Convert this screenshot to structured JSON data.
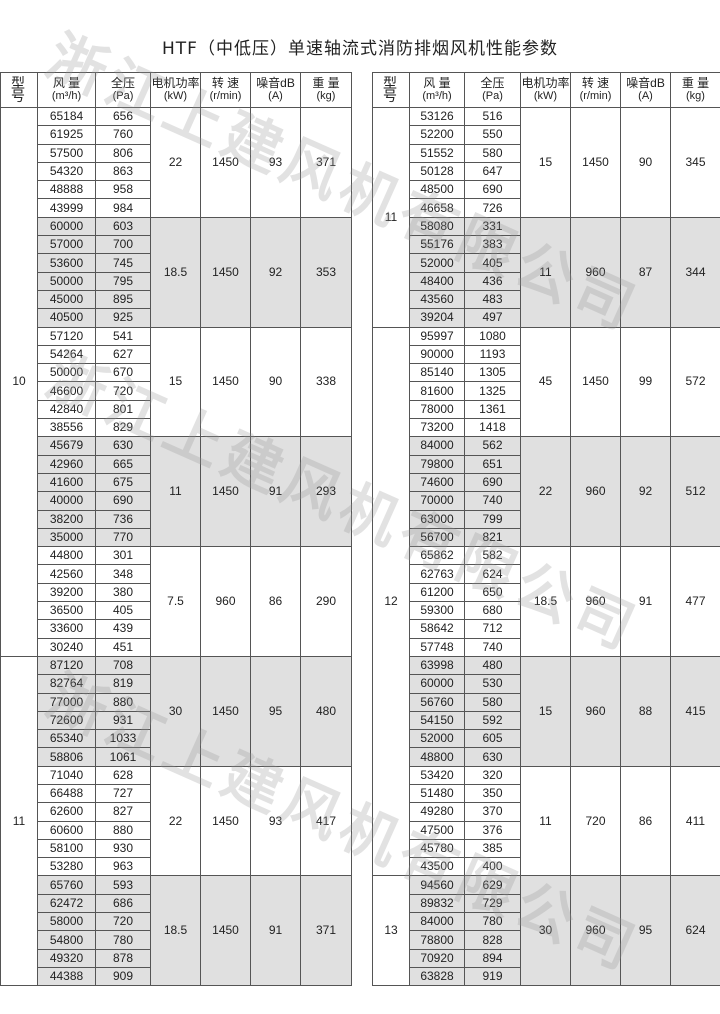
{
  "title": "HTF（中低压）单速轴流式消防排烟风机性能参数",
  "watermark": "浙江上建风机有限公司",
  "headers": [
    {
      "label": "型 号",
      "unit": ""
    },
    {
      "label": "风 量",
      "unit": "(m³/h)"
    },
    {
      "label": "全压",
      "unit": "(Pa)"
    },
    {
      "label": "电机功率",
      "unit": "(kW)"
    },
    {
      "label": "转 速",
      "unit": "(r/min)"
    },
    {
      "label": "噪音dB",
      "unit": "(A)"
    },
    {
      "label": "重 量",
      "unit": "(kg)"
    }
  ],
  "colors": {
    "shade": "#e0e0e0",
    "border": "#555555"
  },
  "left_table": [
    {
      "model": "10",
      "groups": [
        {
          "power": "22",
          "speed": "1450",
          "noise": "93",
          "weight": "371",
          "rows": [
            [
              "65184",
              "656"
            ],
            [
              "61925",
              "760"
            ],
            [
              "57500",
              "806"
            ],
            [
              "54320",
              "863"
            ],
            [
              "48888",
              "958"
            ],
            [
              "43999",
              "984"
            ]
          ]
        },
        {
          "power": "18.5",
          "speed": "1450",
          "noise": "92",
          "weight": "353",
          "rows": [
            [
              "60000",
              "603"
            ],
            [
              "57000",
              "700"
            ],
            [
              "53600",
              "745"
            ],
            [
              "50000",
              "795"
            ],
            [
              "45000",
              "895"
            ],
            [
              "40500",
              "925"
            ]
          ]
        },
        {
          "power": "15",
          "speed": "1450",
          "noise": "90",
          "weight": "338",
          "rows": [
            [
              "57120",
              "541"
            ],
            [
              "54264",
              "627"
            ],
            [
              "50000",
              "670"
            ],
            [
              "46600",
              "720"
            ],
            [
              "42840",
              "801"
            ],
            [
              "38556",
              "829"
            ]
          ]
        },
        {
          "power": "11",
          "speed": "1450",
          "noise": "91",
          "weight": "293",
          "rows": [
            [
              "45679",
              "630"
            ],
            [
              "42960",
              "665"
            ],
            [
              "41600",
              "675"
            ],
            [
              "40000",
              "690"
            ],
            [
              "38200",
              "736"
            ],
            [
              "35000",
              "770"
            ]
          ]
        },
        {
          "power": "7.5",
          "speed": "960",
          "noise": "86",
          "weight": "290",
          "rows": [
            [
              "44800",
              "301"
            ],
            [
              "42560",
              "348"
            ],
            [
              "39200",
              "380"
            ],
            [
              "36500",
              "405"
            ],
            [
              "33600",
              "439"
            ],
            [
              "30240",
              "451"
            ]
          ]
        }
      ]
    },
    {
      "model": "11",
      "groups": [
        {
          "power": "30",
          "speed": "1450",
          "noise": "95",
          "weight": "480",
          "rows": [
            [
              "87120",
              "708"
            ],
            [
              "82764",
              "819"
            ],
            [
              "77000",
              "880"
            ],
            [
              "72600",
              "931"
            ],
            [
              "65340",
              "1033"
            ],
            [
              "58806",
              "1061"
            ]
          ]
        },
        {
          "power": "22",
          "speed": "1450",
          "noise": "93",
          "weight": "417",
          "rows": [
            [
              "71040",
              "628"
            ],
            [
              "66488",
              "727"
            ],
            [
              "62600",
              "827"
            ],
            [
              "60600",
              "880"
            ],
            [
              "58100",
              "930"
            ],
            [
              "53280",
              "963"
            ]
          ]
        },
        {
          "power": "18.5",
          "speed": "1450",
          "noise": "91",
          "weight": "371",
          "rows": [
            [
              "65760",
              "593"
            ],
            [
              "62472",
              "686"
            ],
            [
              "58000",
              "720"
            ],
            [
              "54800",
              "780"
            ],
            [
              "49320",
              "878"
            ],
            [
              "44388",
              "909"
            ]
          ]
        }
      ]
    }
  ],
  "right_table": [
    {
      "model": "11",
      "groups": [
        {
          "power": "15",
          "speed": "1450",
          "noise": "90",
          "weight": "345",
          "rows": [
            [
              "53126",
              "516"
            ],
            [
              "52200",
              "550"
            ],
            [
              "51552",
              "580"
            ],
            [
              "50128",
              "647"
            ],
            [
              "48500",
              "690"
            ],
            [
              "46658",
              "726"
            ]
          ]
        },
        {
          "power": "11",
          "speed": "960",
          "noise": "87",
          "weight": "344",
          "rows": [
            [
              "58080",
              "331"
            ],
            [
              "55176",
              "383"
            ],
            [
              "52000",
              "405"
            ],
            [
              "48400",
              "436"
            ],
            [
              "43560",
              "483"
            ],
            [
              "39204",
              "497"
            ]
          ]
        }
      ]
    },
    {
      "model": "12",
      "groups": [
        {
          "power": "45",
          "speed": "1450",
          "noise": "99",
          "weight": "572",
          "rows": [
            [
              "95997",
              "1080"
            ],
            [
              "90000",
              "1193"
            ],
            [
              "85140",
              "1305"
            ],
            [
              "81600",
              "1325"
            ],
            [
              "78000",
              "1361"
            ],
            [
              "73200",
              "1418"
            ]
          ]
        },
        {
          "power": "22",
          "speed": "960",
          "noise": "92",
          "weight": "512",
          "rows": [
            [
              "84000",
              "562"
            ],
            [
              "79800",
              "651"
            ],
            [
              "74600",
              "690"
            ],
            [
              "70000",
              "740"
            ],
            [
              "63000",
              "799"
            ],
            [
              "56700",
              "821"
            ]
          ]
        },
        {
          "power": "18.5",
          "speed": "960",
          "noise": "91",
          "weight": "477",
          "rows": [
            [
              "65862",
              "582"
            ],
            [
              "62763",
              "624"
            ],
            [
              "61200",
              "650"
            ],
            [
              "59300",
              "680"
            ],
            [
              "58642",
              "712"
            ],
            [
              "57748",
              "740"
            ]
          ]
        },
        {
          "power": "15",
          "speed": "960",
          "noise": "88",
          "weight": "415",
          "rows": [
            [
              "63998",
              "480"
            ],
            [
              "60000",
              "530"
            ],
            [
              "56760",
              "580"
            ],
            [
              "54150",
              "592"
            ],
            [
              "52000",
              "605"
            ],
            [
              "48800",
              "630"
            ]
          ]
        },
        {
          "power": "11",
          "speed": "720",
          "noise": "86",
          "weight": "411",
          "rows": [
            [
              "53420",
              "320"
            ],
            [
              "51480",
              "350"
            ],
            [
              "49280",
              "370"
            ],
            [
              "47500",
              "376"
            ],
            [
              "45780",
              "385"
            ],
            [
              "43500",
              "400"
            ]
          ]
        }
      ]
    },
    {
      "model": "13",
      "groups": [
        {
          "power": "30",
          "speed": "960",
          "noise": "95",
          "weight": "624",
          "rows": [
            [
              "94560",
              "629"
            ],
            [
              "89832",
              "729"
            ],
            [
              "84000",
              "780"
            ],
            [
              "78800",
              "828"
            ],
            [
              "70920",
              "894"
            ],
            [
              "63828",
              "919"
            ]
          ]
        }
      ]
    }
  ]
}
